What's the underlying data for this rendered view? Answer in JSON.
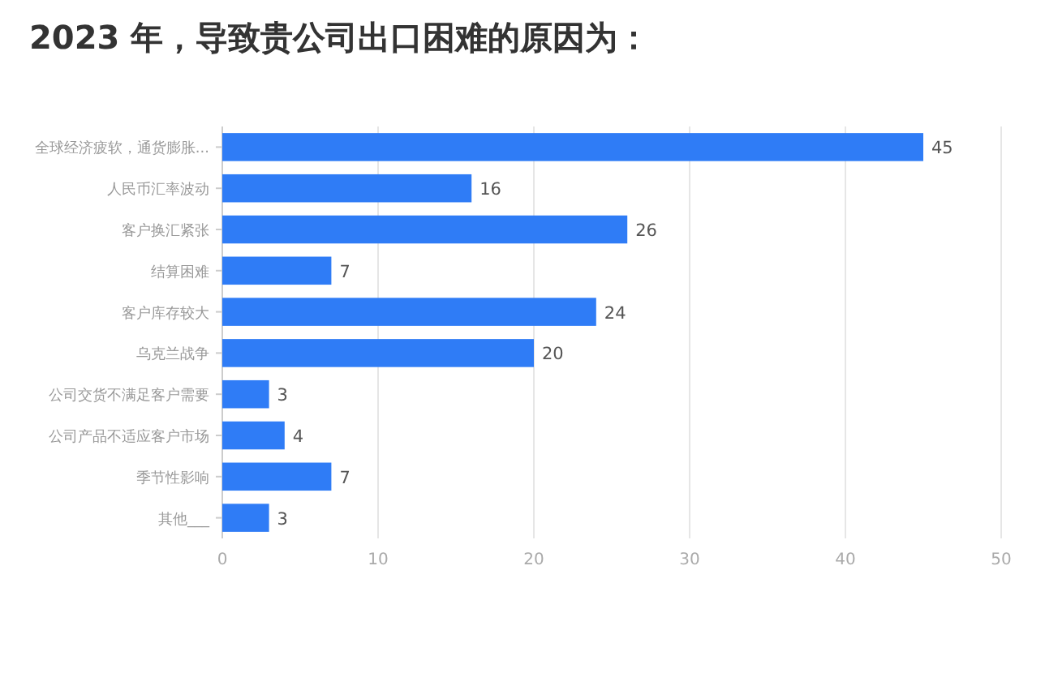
{
  "chart_data": {
    "type": "bar",
    "orientation": "horizontal",
    "title": "2023 年，导致贵公司出口困难的原因为：",
    "categories": [
      "全球经济疲软，通货膨胀...",
      "人民币汇率波动",
      "客户换汇紧张",
      "结算困难",
      "客户库存较大",
      "乌克兰战争",
      "公司交货不满足客户需要",
      "公司产品不适应客户市场",
      "季节性影响",
      "其他___"
    ],
    "values": [
      45,
      16,
      26,
      7,
      24,
      20,
      3,
      4,
      7,
      3
    ],
    "color": "#2f7cf6",
    "xlim": [
      0,
      50
    ],
    "xticks": [
      0,
      10,
      20,
      30,
      40,
      50
    ],
    "grid": "x",
    "data_labels": true
  }
}
